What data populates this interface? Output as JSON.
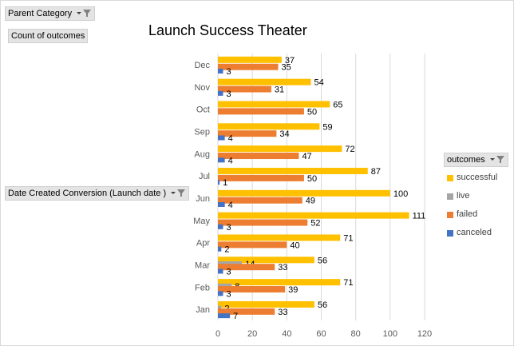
{
  "filters": {
    "page_filter_label": "Parent Category",
    "values_label": "Count of outcomes",
    "row_field_label": "Date Created Conversion (Launch date )",
    "legend_field_label": "outcomes"
  },
  "colors": {
    "successful": "#FFC000",
    "live": "#A5A5A5",
    "failed": "#ED7D31",
    "canceled": "#4472C4",
    "gridline": "#d9d9d9",
    "axis_text": "#595959"
  },
  "chart_data": {
    "type": "bar",
    "orientation": "horizontal",
    "title": "Launch Success Theater",
    "xlabel": "",
    "ylabel": "",
    "xlim": [
      0,
      120
    ],
    "x_ticks": [
      "0",
      "20",
      "40",
      "60",
      "80",
      "100",
      "120"
    ],
    "grid": true,
    "legend_position": "right",
    "categories": [
      "Dec",
      "Nov",
      "Oct",
      "Sep",
      "Aug",
      "Jul",
      "Jun",
      "May",
      "Apr",
      "Mar",
      "Feb",
      "Jan"
    ],
    "series": [
      {
        "name": "successful",
        "values": [
          37,
          54,
          65,
          59,
          72,
          87,
          100,
          111,
          71,
          56,
          71,
          56
        ]
      },
      {
        "name": "live",
        "values": [
          0,
          0,
          0,
          0,
          0,
          0,
          0,
          0,
          0,
          14,
          8,
          2
        ]
      },
      {
        "name": "failed",
        "values": [
          35,
          31,
          50,
          34,
          47,
          50,
          49,
          52,
          40,
          33,
          39,
          33
        ]
      },
      {
        "name": "canceled",
        "values": [
          3,
          3,
          0,
          4,
          4,
          1,
          4,
          3,
          2,
          3,
          3,
          7
        ]
      }
    ]
  }
}
